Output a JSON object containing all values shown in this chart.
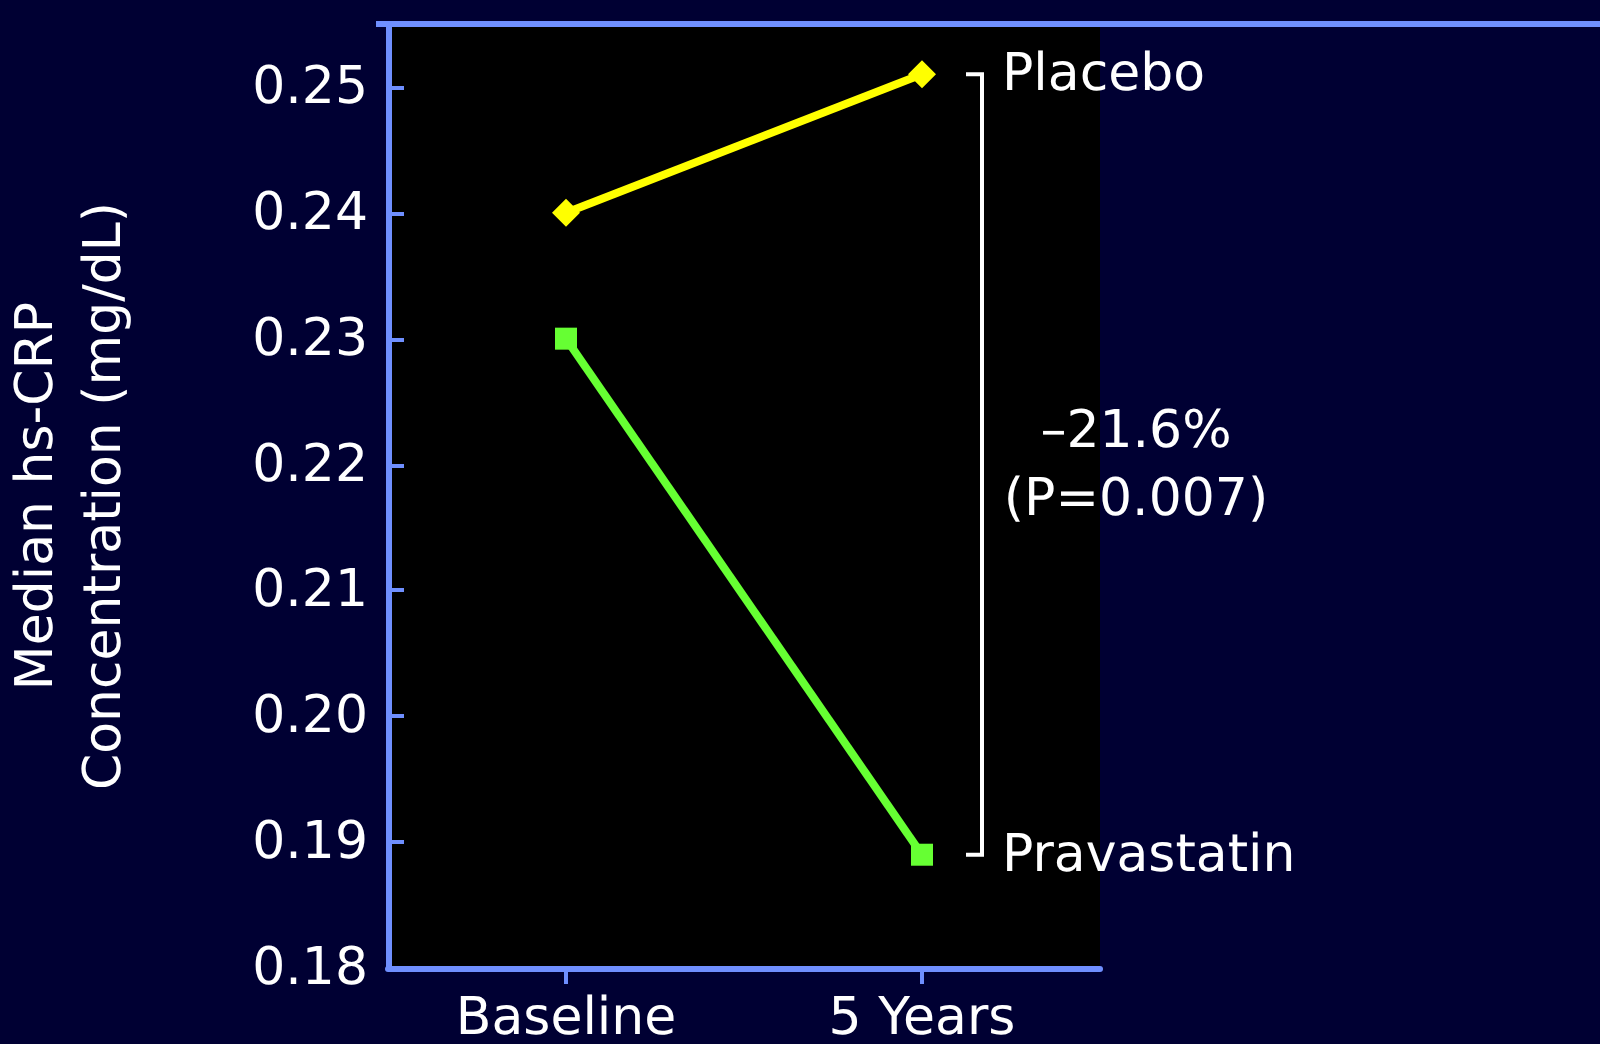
{
  "chart_data": {
    "type": "line",
    "ylabel": "Median hs-CRP\nConcentration (mg/dL)",
    "categories": [
      "Baseline",
      "5 Years"
    ],
    "series": [
      {
        "name": "Placebo",
        "color": "#ffff00",
        "marker": "diamond",
        "values": [
          0.24,
          0.251
        ]
      },
      {
        "name": "Pravastatin",
        "color": "#66ff33",
        "marker": "square",
        "values": [
          0.23,
          0.189
        ]
      }
    ],
    "ylim": [
      0.18,
      0.255
    ],
    "yticks": [
      0.18,
      0.19,
      {
        "value": 0.2,
        "label": "0.20"
      },
      0.21,
      0.22,
      0.23,
      0.24,
      0.25
    ],
    "annotations": [
      "–21.6%",
      "(P=0.007)"
    ],
    "grid": false,
    "legend": false
  }
}
